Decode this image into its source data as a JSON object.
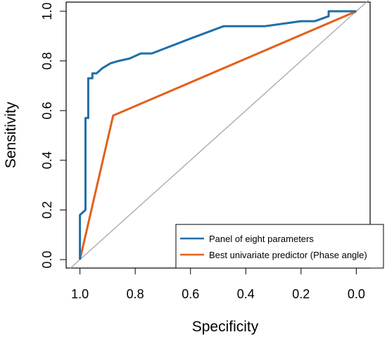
{
  "chart_data": {
    "type": "line",
    "xlabel": "Specificity",
    "ylabel": "Sensitivity",
    "xlim": [
      1.05,
      -0.05
    ],
    "ylim": [
      0.0,
      1.0
    ],
    "x_reversed": true,
    "xticks": [
      1.0,
      0.8,
      0.6,
      0.4,
      0.2,
      0.0
    ],
    "xtick_labels": [
      "1.0",
      "0.8",
      "0.6",
      "0.4",
      "0.2",
      "0.0"
    ],
    "yticks": [
      0.0,
      0.2,
      0.4,
      0.6,
      0.8,
      1.0
    ],
    "ytick_labels": [
      "0.0",
      "0.2",
      "0.4",
      "0.6",
      "0.8",
      "1.0"
    ],
    "grid": false,
    "legend_position": "bottom-right",
    "reference_line": {
      "from": [
        1.0,
        0.0
      ],
      "to": [
        0.0,
        1.0
      ],
      "color": "#a0a0a0"
    },
    "series": [
      {
        "name": "Panel of eight parameters",
        "color": "#1f6fa8",
        "x": [
          1.0,
          1.0,
          0.98,
          0.98,
          0.97,
          0.97,
          0.955,
          0.955,
          0.94,
          0.92,
          0.89,
          0.86,
          0.82,
          0.78,
          0.74,
          0.6,
          0.48,
          0.33,
          0.2,
          0.15,
          0.1,
          0.1,
          0.0
        ],
        "y": [
          0.0,
          0.18,
          0.2,
          0.57,
          0.57,
          0.73,
          0.73,
          0.75,
          0.75,
          0.77,
          0.79,
          0.8,
          0.81,
          0.83,
          0.83,
          0.89,
          0.94,
          0.94,
          0.96,
          0.96,
          0.98,
          1.0,
          1.0
        ]
      },
      {
        "name": "Best univariate predictor (Phase angle)",
        "color": "#e2611c",
        "x": [
          1.0,
          0.88,
          0.0
        ],
        "y": [
          0.0,
          0.58,
          1.0
        ]
      }
    ]
  }
}
